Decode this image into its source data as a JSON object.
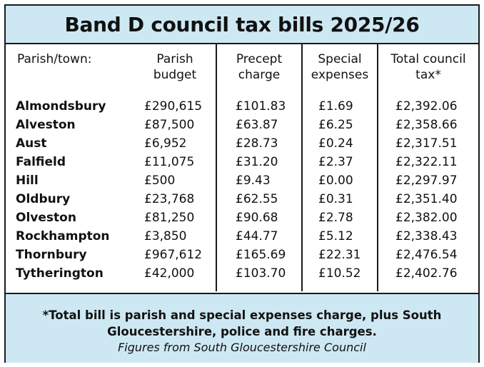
{
  "title": "Band D council tax bills 2025/26",
  "headers": {
    "parish": "Parish/town:",
    "budget": [
      "Parish",
      "budget"
    ],
    "precept": [
      "Precept",
      "charge"
    ],
    "special": [
      "Special",
      "expenses"
    ],
    "total": [
      "Total council",
      "tax*"
    ]
  },
  "rows": [
    {
      "name": "Almondsbury",
      "budget": "£290,615",
      "precept": "£101.83",
      "special": "£1.69",
      "total": "£2,392.06"
    },
    {
      "name": "Alveston",
      "budget": "£87,500",
      "precept": "£63.87",
      "special": "£6.25",
      "total": "£2,358.66"
    },
    {
      "name": "Aust",
      "budget": "£6,952",
      "precept": "£28.73",
      "special": "£0.24",
      "total": "£2,317.51"
    },
    {
      "name": "Falfield",
      "budget": "£11,075",
      "precept": "£31.20",
      "special": "£2.37",
      "total": "£2,322.11"
    },
    {
      "name": "Hill",
      "budget": "£500",
      "precept": "£9.43",
      "special": "£0.00",
      "total": "£2,297.97"
    },
    {
      "name": "Oldbury",
      "budget": "£23,768",
      "precept": "£62.55",
      "special": "£0.31",
      "total": "£2,351.40"
    },
    {
      "name": "Olveston",
      "budget": "£81,250",
      "precept": "£90.68",
      "special": "£2.78",
      "total": "£2,382.00"
    },
    {
      "name": "Rockhampton",
      "budget": "£3,850",
      "precept": "£44.77",
      "special": "£5.12",
      "total": "£2,338.43"
    },
    {
      "name": "Thornbury",
      "budget": "£967,612",
      "precept": "£165.69",
      "special": "£22.31",
      "total": "£2,476.54"
    },
    {
      "name": "Tytherington",
      "budget": "£42,000",
      "precept": "£103.70",
      "special": "£10.52",
      "total": "£2,402.76"
    }
  ],
  "footnote": "*Total bill is parish and special expenses charge, plus South Gloucestershire, police and fire charges.",
  "source": "Figures from South Gloucestershire Council",
  "colors": {
    "panel": "#cde8f3",
    "border": "#1a1a1a",
    "text": "#111111"
  }
}
